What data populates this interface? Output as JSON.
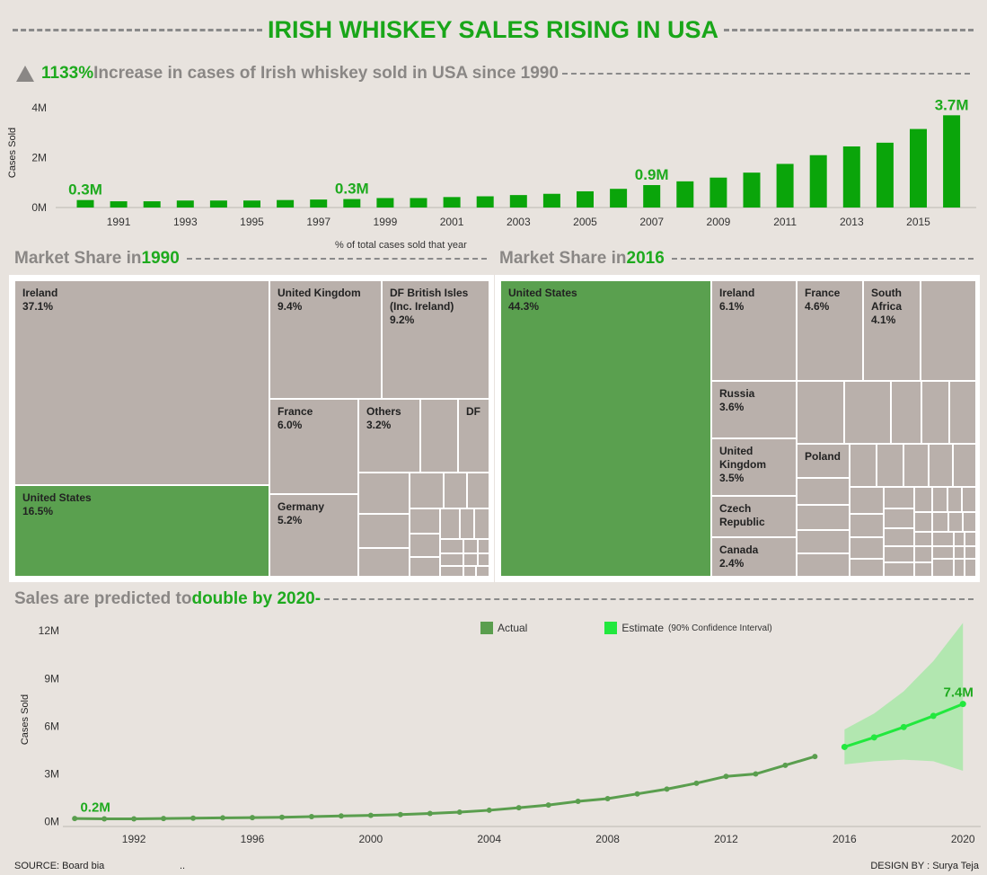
{
  "title": "IRISH WHISKEY SALES RISING IN USA",
  "section1": {
    "pct": "1133%",
    "text": " Increase in cases of Irish whiskey sold in USA since 1990"
  },
  "section2_left": {
    "prefix": "Market Share in ",
    "year": "1990"
  },
  "section2_right": {
    "prefix": "Market Share in ",
    "year": "2016"
  },
  "treemap_caption": "% of total cases sold that year",
  "section3": {
    "prefix": "Sales are predicted to ",
    "highlight": "double by 2020",
    "suffix": " -"
  },
  "colors": {
    "bar": "#0aa50a",
    "us": "#5aa04f",
    "other": "#b9b0ab",
    "actual": "#5a9e4e",
    "estimate": "#22e83e",
    "band": "#a8e8a8",
    "accent": "#1eaa1e"
  },
  "chart_data": [
    {
      "type": "bar",
      "ylabel": "Cases Sold",
      "ylim": [
        0,
        4.4
      ],
      "yticks": [
        "0M",
        "2M",
        "4M"
      ],
      "categories": [
        1990,
        1991,
        1992,
        1993,
        1994,
        1995,
        1996,
        1997,
        1998,
        1999,
        2000,
        2001,
        2002,
        2003,
        2004,
        2005,
        2006,
        2007,
        2008,
        2009,
        2010,
        2011,
        2012,
        2013,
        2014,
        2015,
        2016
      ],
      "xtick_labels": [
        "1991",
        "1993",
        "1995",
        "1997",
        "1999",
        "2001",
        "2003",
        "2005",
        "2007",
        "2009",
        "2011",
        "2013",
        "2015"
      ],
      "values": [
        0.3,
        0.25,
        0.25,
        0.28,
        0.28,
        0.28,
        0.3,
        0.32,
        0.34,
        0.38,
        0.38,
        0.42,
        0.45,
        0.5,
        0.55,
        0.65,
        0.75,
        0.9,
        1.05,
        1.2,
        1.4,
        1.75,
        2.1,
        2.45,
        2.6,
        3.15,
        3.7
      ],
      "annotations": [
        {
          "x": 1990,
          "label": "0.3M"
        },
        {
          "x": 1998,
          "label": "0.3M"
        },
        {
          "x": 2007,
          "label": "0.9M"
        },
        {
          "x": 2016,
          "label": "3.7M"
        }
      ]
    },
    {
      "type": "treemap",
      "title": "Market Share in 1990",
      "items": [
        {
          "name": "Ireland",
          "value": "37.1%"
        },
        {
          "name": "United States",
          "value": "16.5%"
        },
        {
          "name": "United Kingdom",
          "value": "9.4%"
        },
        {
          "name": "DF British Isles (Inc. Ireland)",
          "value": "9.2%"
        },
        {
          "name": "France",
          "value": "6.0%"
        },
        {
          "name": "Others",
          "value": "3.2%"
        },
        {
          "name": "DF",
          "value": ""
        },
        {
          "name": "Germany",
          "value": "5.2%"
        }
      ]
    },
    {
      "type": "treemap",
      "title": "Market Share in 2016",
      "items": [
        {
          "name": "United States",
          "value": "44.3%"
        },
        {
          "name": "Ireland",
          "value": "6.1%"
        },
        {
          "name": "France",
          "value": "4.6%"
        },
        {
          "name": "South Africa",
          "value": "4.1%"
        },
        {
          "name": "Russia",
          "value": "3.6%"
        },
        {
          "name": "United Kingdom",
          "value": "3.5%"
        },
        {
          "name": "Poland",
          "value": ""
        },
        {
          "name": "Czech Republic",
          "value": ""
        },
        {
          "name": "Canada",
          "value": "2.4%"
        }
      ]
    },
    {
      "type": "line",
      "ylabel": "Cases Sold",
      "ylim": [
        -0.3,
        12.8
      ],
      "yticks": [
        0,
        3,
        6,
        9,
        12
      ],
      "ytick_labels": [
        "0M",
        "3M",
        "6M",
        "9M",
        "12M"
      ],
      "xlim": [
        1989.6,
        2020.6
      ],
      "xticks": [
        1992,
        1996,
        2000,
        2004,
        2008,
        2012,
        2016,
        2020
      ],
      "legend": [
        "Actual",
        "Estimate"
      ],
      "legend_note": "(90% Confidence Interval)",
      "actual": {
        "x": [
          1990,
          1991,
          1992,
          1993,
          1994,
          1995,
          1996,
          1997,
          1998,
          1999,
          2000,
          2001,
          2002,
          2003,
          2004,
          2005,
          2006,
          2007,
          2008,
          2009,
          2010,
          2011,
          2012,
          2013,
          2014,
          2015
        ],
        "y": [
          0.2,
          0.18,
          0.18,
          0.2,
          0.22,
          0.24,
          0.26,
          0.28,
          0.32,
          0.36,
          0.4,
          0.45,
          0.52,
          0.6,
          0.72,
          0.88,
          1.05,
          1.28,
          1.45,
          1.75,
          2.05,
          2.42,
          2.85,
          3.0,
          3.55,
          4.1
        ]
      },
      "estimate": {
        "x": [
          2016,
          2017,
          2018,
          2019,
          2020
        ],
        "y": [
          4.7,
          5.3,
          5.95,
          6.65,
          7.4
        ],
        "lower": [
          3.6,
          3.8,
          3.9,
          3.8,
          3.2
        ],
        "upper": [
          5.8,
          6.8,
          8.2,
          10.1,
          12.5
        ]
      },
      "annotations": [
        {
          "x": 1991,
          "label": "0.2M"
        },
        {
          "x": 2020,
          "label": "7.4M"
        }
      ]
    }
  ],
  "footer": {
    "source": "SOURCE: Board bia",
    "dots": "..",
    "design": "DESIGN BY : Surya Teja"
  }
}
